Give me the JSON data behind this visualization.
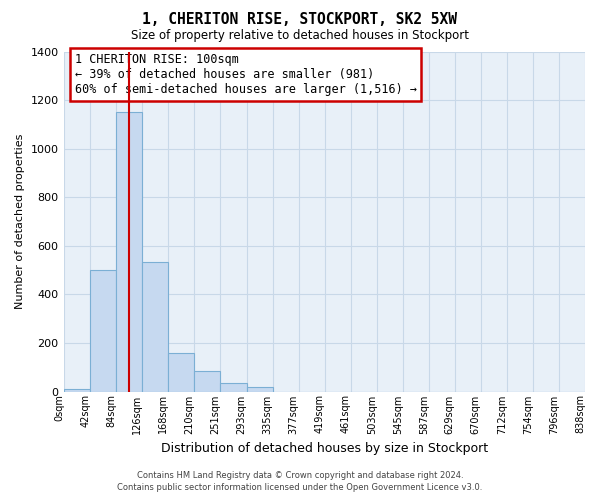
{
  "title": "1, CHERITON RISE, STOCKPORT, SK2 5XW",
  "subtitle": "Size of property relative to detached houses in Stockport",
  "xlabel": "Distribution of detached houses by size in Stockport",
  "ylabel": "Number of detached properties",
  "bar_color": "#c6d9f0",
  "bar_edge_color": "#7bafd4",
  "bg_color": "#ffffff",
  "plot_bg_color": "#e8f0f8",
  "grid_color": "#c8d8e8",
  "tick_labels": [
    "0sqm",
    "42sqm",
    "84sqm",
    "126sqm",
    "168sqm",
    "210sqm",
    "251sqm",
    "293sqm",
    "335sqm",
    "377sqm",
    "419sqm",
    "461sqm",
    "503sqm",
    "545sqm",
    "587sqm",
    "629sqm",
    "670sqm",
    "712sqm",
    "754sqm",
    "796sqm",
    "838sqm"
  ],
  "bar_values": [
    10,
    500,
    1150,
    535,
    160,
    85,
    35,
    20,
    0,
    0,
    0,
    0,
    0,
    0,
    0,
    0,
    0,
    0,
    0,
    0
  ],
  "ylim": [
    0,
    1400
  ],
  "yticks": [
    0,
    200,
    400,
    600,
    800,
    1000,
    1200,
    1400
  ],
  "red_line_x": 2.5,
  "annotation_title": "1 CHERITON RISE: 100sqm",
  "annotation_line1": "← 39% of detached houses are smaller (981)",
  "annotation_line2": "60% of semi-detached houses are larger (1,516) →",
  "footer_line1": "Contains HM Land Registry data © Crown copyright and database right 2024.",
  "footer_line2": "Contains public sector information licensed under the Open Government Licence v3.0."
}
